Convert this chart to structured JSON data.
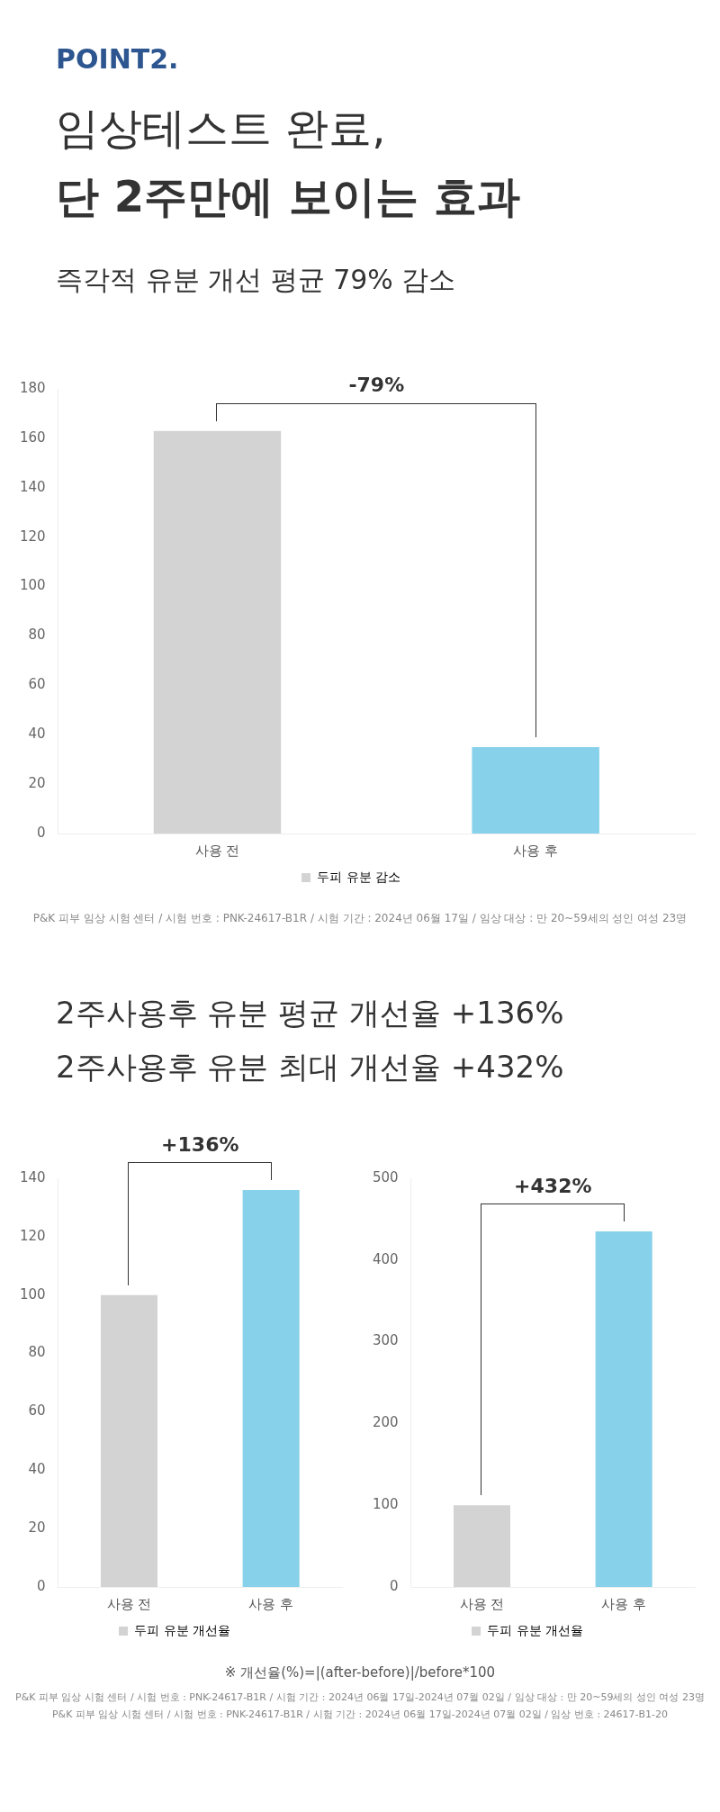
{
  "chart_data": [
    {
      "type": "bar",
      "title": "POINT2.",
      "subtitle": "임상테스트 완료,\n단 2주만에 보이는 효과",
      "categories": [
        "사용 전",
        "사용 후"
      ],
      "series": [
        {
          "name": "두피 유분 감소",
          "colors": [
            "#d3d3d3",
            "#87d1ea"
          ],
          "values": [
            163,
            35
          ]
        }
      ],
      "ylim": [
        0,
        180
      ],
      "yticks": [
        0,
        20,
        40,
        60,
        80,
        100,
        120,
        140,
        160,
        180
      ],
      "grid": false,
      "legend": "bottom",
      "annotations": [
        "-79%",
        "즉각적 유분 개선 평균 79% 감소",
        "P&K 피부 임상 시험 센터 / 시험 번호 : PNK-24617-B1R / 시험 기간 : 2024년 06월 17일 / 임상 대상 : 만 20~59세의 성인 여성 23명"
      ]
    },
    {
      "type": "bar",
      "title": "2주사용후 유분 평균 개선율 +136%",
      "categories": [
        "사용 전",
        "사용 후"
      ],
      "series": [
        {
          "name": "두피 유분 개선율",
          "colors": [
            "#d3d3d3",
            "#87d1ea"
          ],
          "values": [
            100,
            136
          ]
        }
      ],
      "ylim": [
        0,
        140
      ],
      "yticks": [
        0,
        20,
        40,
        60,
        80,
        100,
        120,
        140
      ],
      "grid": false,
      "legend": "bottom",
      "annotations": [
        "+136%"
      ]
    },
    {
      "type": "bar",
      "title": "2주사용후 유분 최대 개선율 +432%",
      "categories": [
        "사용 전",
        "사용 후"
      ],
      "series": [
        {
          "name": "두피 유분 개선율",
          "colors": [
            "#d3d3d3",
            "#87d1ea"
          ],
          "values": [
            100,
            435
          ]
        }
      ],
      "ylim": [
        0,
        500
      ],
      "yticks": [
        0,
        100,
        200,
        300,
        400,
        500
      ],
      "grid": false,
      "legend": "bottom",
      "annotations": [
        "+432%",
        "※ 개선율(%)=|(after-before)|/before*100",
        "P&K 피부 임상 시험 센터 / 시험 번호 : PNK-24617-B1R / 시험 기간 : 2024년 06월 17일-2024년 07월 02일 / 임상 대상 : 만 20~59세의 성인 여성 23명",
        "P&K 피부 임상 시험 센터 / 시험 번호 : PNK-24617-B1R / 시험 기간 : 2024년 06월 17일-2024년 07월 02일 / 임상 번호 :  24617-B1-20"
      ]
    }
  ]
}
